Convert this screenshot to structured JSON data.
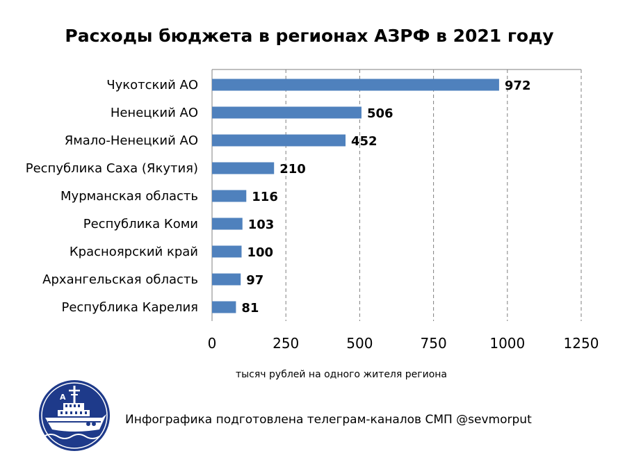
{
  "chart_data": {
    "type": "bar",
    "orientation": "horizontal",
    "title": "Расходы бюджета в регионах АЗРФ в 2021 году",
    "xlabel": "тысяч рублей на одного жителя региона",
    "ylabel": "",
    "categories": [
      "Чукотский АО",
      "Ненецкий АО",
      "Ямало-Ненецкий АО",
      "Республика Саха (Якутия)",
      "Мурманская область",
      "Республика Коми",
      "Красноярский край",
      "Архангельская область",
      "Республика Карелия"
    ],
    "values": [
      972,
      506,
      452,
      210,
      116,
      103,
      100,
      97,
      81
    ],
    "xlim": [
      0,
      1250
    ],
    "xticks": [
      0,
      250,
      500,
      750,
      1000,
      1250
    ],
    "grid": "vertical dashed",
    "bar_color": "#4f81bd",
    "legend": "none"
  },
  "footer": {
    "text": "Инфографика подготовлена телеграм-каналов СМП @sevmorput"
  },
  "logo": {
    "icon": "icebreaker-ship-icon",
    "colors": {
      "circle": "#1e3a8a",
      "background": "#ffffff"
    },
    "text": "A"
  }
}
